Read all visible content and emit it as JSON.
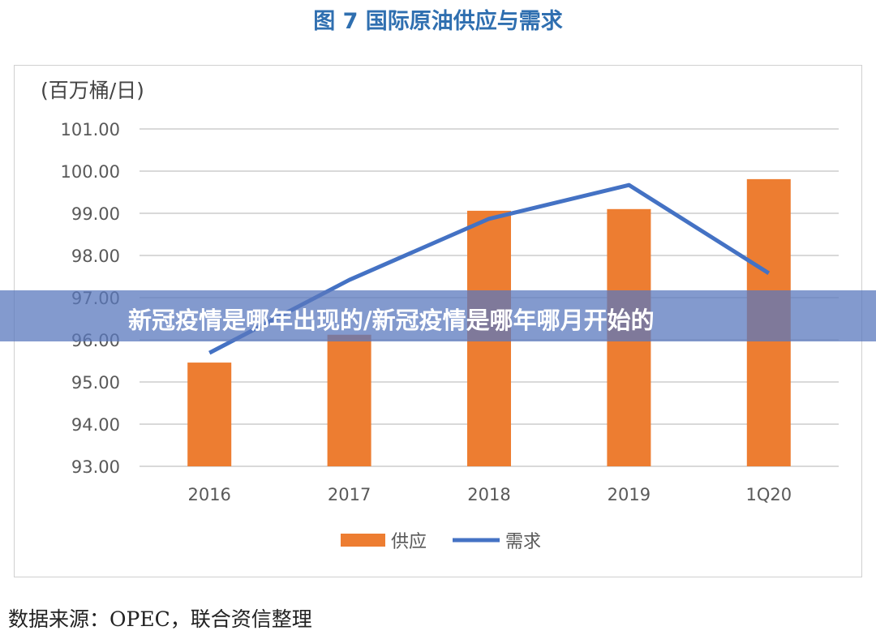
{
  "title": "图 7 国际原油供应与需求",
  "overlay_banner": "新冠疫情是哪年出现的/新冠疫情是哪年哪月开始的",
  "source": "数据来源：OPEC，联合资信整理",
  "chart_data": {
    "type": "bar+line",
    "title": "图 7 国际原油供应与需求",
    "ylabel": "(百万桶/日)",
    "categories": [
      "2016",
      "2017",
      "2018",
      "2019",
      "1Q20"
    ],
    "ylim": [
      93,
      101
    ],
    "yticks": [
      "93.00",
      "94.00",
      "95.00",
      "96.00",
      "97.00",
      "98.00",
      "99.00",
      "100.00",
      "101.00"
    ],
    "grid": true,
    "legend_position": "bottom",
    "series": [
      {
        "name": "供应",
        "type": "bar",
        "color": "#ed7d31",
        "values": [
          95.46,
          96.12,
          99.06,
          99.1,
          99.81
        ]
      },
      {
        "name": "需求",
        "type": "line",
        "color": "#4472c4",
        "values": [
          95.69,
          97.42,
          98.87,
          99.67,
          97.58
        ]
      }
    ]
  }
}
